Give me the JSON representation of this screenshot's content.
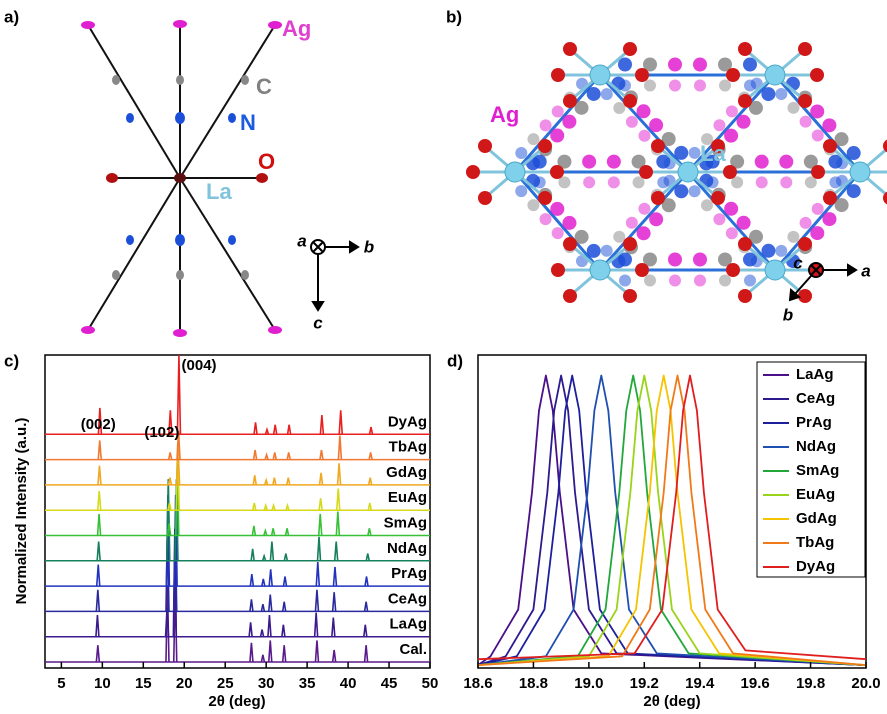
{
  "panels": {
    "a": {
      "label": "a)",
      "atom_labels": [
        "Ag",
        "C",
        "N",
        "O",
        "La"
      ],
      "axis_labels": [
        "a",
        "b",
        "c"
      ]
    },
    "b": {
      "label": "b)",
      "atom_labels": [
        "Ag",
        "La"
      ],
      "axis_labels": [
        "c",
        "a",
        "b"
      ]
    }
  },
  "chart_data": [
    {
      "type": "waterfall",
      "panel_label": "c)",
      "xlabel": "2θ (deg)",
      "ylabel": "Normalized Intensity (a.u.)",
      "xlim": [
        3,
        50
      ],
      "xticks": [
        5,
        10,
        15,
        20,
        25,
        30,
        35,
        40,
        45,
        50
      ],
      "annotations": [
        {
          "text": "(002)",
          "x": 9.5
        },
        {
          "text": "(102)",
          "x": 18
        },
        {
          "text": "(004)",
          "x": 19.3
        }
      ],
      "series": [
        {
          "name": "Cal.",
          "color": "#5b1a8c",
          "x": [
            9.45,
            17.95,
            18.9,
            28.2,
            29.6,
            30.5,
            32.2,
            36.2,
            38.3,
            42.2
          ],
          "values": [
            0.7,
            3.2,
            3.2,
            0.8,
            0.3,
            0.9,
            0.7,
            0.9,
            0.5,
            0.7
          ]
        },
        {
          "name": "LaAg",
          "color": "#3b1a8e",
          "x": [
            9.4,
            17.9,
            18.85,
            28.1,
            29.5,
            30.4,
            32.1,
            36.1,
            38.2,
            42.1
          ],
          "values": [
            0.9,
            1.2,
            4.5,
            0.6,
            0.3,
            0.9,
            0.5,
            1.0,
            0.8,
            0.5
          ]
        },
        {
          "name": "CeAg",
          "color": "#2a2a9e",
          "x": [
            9.45,
            17.95,
            18.9,
            28.2,
            29.6,
            30.5,
            32.2,
            36.2,
            38.3,
            42.2
          ],
          "values": [
            0.9,
            3.5,
            3.5,
            0.5,
            0.3,
            0.7,
            0.4,
            0.9,
            0.8,
            0.4
          ]
        },
        {
          "name": "PrAg",
          "color": "#2233c0",
          "x": [
            9.5,
            18.0,
            18.95,
            28.25,
            29.65,
            30.55,
            32.3,
            36.3,
            38.4,
            42.25
          ],
          "values": [
            0.9,
            3.8,
            3.8,
            0.5,
            0.3,
            0.7,
            0.4,
            1.0,
            0.8,
            0.4
          ]
        },
        {
          "name": "NdAg",
          "color": "#16805c",
          "x": [
            9.55,
            18.05,
            19.05,
            28.35,
            29.75,
            30.7,
            32.4,
            36.45,
            38.55,
            42.4
          ],
          "values": [
            0.8,
            3.4,
            3.4,
            0.5,
            0.2,
            0.8,
            0.3,
            1.0,
            0.8,
            0.3
          ]
        },
        {
          "name": "SmAg",
          "color": "#38c038",
          "x": [
            9.6,
            18.15,
            19.15,
            28.5,
            29.9,
            30.85,
            32.55,
            36.6,
            38.75,
            42.6
          ],
          "values": [
            0.9,
            0.5,
            3.2,
            0.4,
            0.2,
            0.3,
            0.3,
            0.9,
            1.0,
            0.3
          ]
        },
        {
          "name": "EuAg",
          "color": "#d6d81a",
          "x": [
            9.62,
            18.2,
            19.2,
            28.55,
            29.95,
            30.9,
            32.6,
            36.65,
            38.8,
            42.65
          ],
          "values": [
            0.8,
            0.3,
            2.8,
            0.3,
            0.2,
            0.2,
            0.2,
            0.5,
            0.9,
            0.3
          ]
        },
        {
          "name": "GdAg",
          "color": "#f0a820",
          "x": [
            9.65,
            18.25,
            19.25,
            28.6,
            30.0,
            31.0,
            32.7,
            36.7,
            38.9,
            42.7
          ],
          "values": [
            0.8,
            0.3,
            1.5,
            0.4,
            0.2,
            0.3,
            0.3,
            0.5,
            0.9,
            0.3
          ]
        },
        {
          "name": "TbAg",
          "color": "#f07830",
          "x": [
            9.68,
            18.28,
            19.3,
            28.65,
            30.05,
            31.05,
            32.75,
            36.75,
            39.0,
            42.75
          ],
          "values": [
            0.8,
            0.3,
            1.2,
            0.4,
            0.2,
            0.3,
            0.3,
            0.4,
            1.0,
            0.3
          ]
        },
        {
          "name": "DyAg",
          "color": "#e82020",
          "x": [
            9.7,
            18.3,
            19.35,
            28.7,
            30.1,
            31.1,
            32.8,
            36.8,
            39.1,
            42.8
          ],
          "values": [
            1.1,
            1.0,
            3.3,
            0.5,
            0.2,
            0.4,
            0.4,
            0.8,
            1.0,
            0.3
          ]
        }
      ]
    },
    {
      "type": "line",
      "panel_label": "d)",
      "xlabel": "2θ (deg)",
      "legend": "upper right",
      "xlim": [
        18.6,
        20.0
      ],
      "ylim": [
        0,
        1.07
      ],
      "xticks": [
        18.6,
        18.8,
        {
          "value": 19,
          "label": "19.0"
        },
        19.2,
        19.4,
        19.6,
        19.8,
        {
          "value": 20,
          "label": "20.0"
        }
      ],
      "series": [
        {
          "name": "LaAg",
          "color": "#4b0f8a",
          "x": [
            18.6,
            18.645,
            18.745,
            18.795,
            18.82,
            18.845,
            18.87,
            18.895,
            18.945,
            19.045,
            20.0
          ],
          "values": [
            0.01,
            0.04,
            0.2,
            0.6,
            0.88,
            1,
            0.88,
            0.6,
            0.2,
            0.05,
            0.01
          ]
        },
        {
          "name": "CeAg",
          "color": "#2c1a8e",
          "x": [
            18.6,
            18.7,
            18.8,
            18.85,
            18.875,
            18.9,
            18.925,
            18.95,
            19.0,
            19.1,
            20.0
          ],
          "values": [
            0.01,
            0.04,
            0.2,
            0.6,
            0.88,
            1,
            0.88,
            0.6,
            0.2,
            0.05,
            0.01
          ]
        },
        {
          "name": "PrAg",
          "color": "#1d1f9c",
          "x": [
            18.6,
            18.74,
            18.84,
            18.89,
            18.915,
            18.94,
            18.965,
            18.99,
            19.04,
            19.14,
            20.0
          ],
          "values": [
            0.01,
            0.04,
            0.2,
            0.6,
            0.88,
            1,
            0.88,
            0.6,
            0.2,
            0.05,
            0.01
          ]
        },
        {
          "name": "NdAg",
          "color": "#1f4fb0",
          "x": [
            18.6,
            18.845,
            18.945,
            18.995,
            19.02,
            19.045,
            19.07,
            19.095,
            19.145,
            19.245,
            20.0
          ],
          "values": [
            0.01,
            0.04,
            0.2,
            0.6,
            0.88,
            1,
            0.88,
            0.6,
            0.2,
            0.05,
            0.01
          ]
        },
        {
          "name": "SmAg",
          "color": "#22a83a",
          "x": [
            18.6,
            18.96,
            19.06,
            19.11,
            19.135,
            19.16,
            19.185,
            19.21,
            19.26,
            19.36,
            20.0
          ],
          "values": [
            0.01,
            0.04,
            0.2,
            0.6,
            0.88,
            1,
            0.88,
            0.6,
            0.2,
            0.05,
            0.01
          ]
        },
        {
          "name": "EuAg",
          "color": "#9ad41a",
          "x": [
            18.6,
            19.0,
            19.1,
            19.15,
            19.175,
            19.2,
            19.225,
            19.25,
            19.3,
            19.4,
            20.0
          ],
          "values": [
            0.01,
            0.04,
            0.2,
            0.6,
            0.88,
            1,
            0.88,
            0.6,
            0.2,
            0.05,
            0.01
          ]
        },
        {
          "name": "GdAg",
          "color": "#f5c400",
          "x": [
            18.6,
            19.07,
            19.17,
            19.22,
            19.245,
            19.27,
            19.295,
            19.32,
            19.37,
            19.47,
            20.0
          ],
          "values": [
            0.01,
            0.04,
            0.2,
            0.6,
            0.88,
            1,
            0.88,
            0.6,
            0.2,
            0.05,
            0.01
          ]
        },
        {
          "name": "TbAg",
          "color": "#f07a1a",
          "x": [
            18.6,
            19.12,
            19.22,
            19.27,
            19.295,
            19.32,
            19.345,
            19.37,
            19.42,
            19.52,
            20.0
          ],
          "values": [
            0.01,
            0.04,
            0.2,
            0.6,
            0.88,
            1,
            0.88,
            0.6,
            0.2,
            0.05,
            0.01
          ]
        },
        {
          "name": "DyAg",
          "color": "#e01e1e",
          "x": [
            18.6,
            19.165,
            19.265,
            19.315,
            19.34,
            19.365,
            19.39,
            19.415,
            19.465,
            19.565,
            20.0
          ],
          "values": [
            0.03,
            0.05,
            0.2,
            0.6,
            0.88,
            1,
            0.88,
            0.6,
            0.2,
            0.06,
            0.03
          ]
        }
      ]
    }
  ]
}
